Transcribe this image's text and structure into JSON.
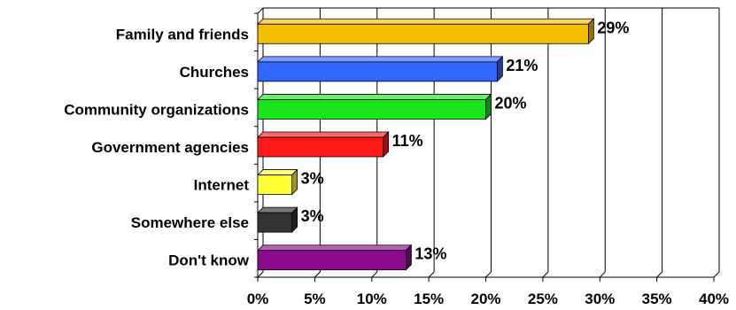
{
  "chart_data": {
    "type": "bar",
    "orientation": "horizontal",
    "style": "3d",
    "categories": [
      "Family and friends",
      "Churches",
      "Community organizations",
      "Government agencies",
      "Internet",
      "Somewhere else",
      "Don't know"
    ],
    "values": [
      29,
      21,
      20,
      11,
      3,
      3,
      13
    ],
    "data_labels": [
      "29%",
      "21%",
      "20%",
      "11%",
      "3%",
      "3%",
      "13%"
    ],
    "colors": [
      "#F5C000",
      "#3366FF",
      "#1AE51A",
      "#FF1A1A",
      "#FFFF33",
      "#333333",
      "#8B0A8B"
    ],
    "xlim": [
      0,
      40
    ],
    "ticks": [
      "0%",
      "5%",
      "10%",
      "15%",
      "20%",
      "25%",
      "30%",
      "35%",
      "40%"
    ],
    "tick_values": [
      0,
      5,
      10,
      15,
      20,
      25,
      30,
      35,
      40
    ],
    "grid": true,
    "legend": "none",
    "title": "",
    "xlabel": "",
    "ylabel": ""
  }
}
